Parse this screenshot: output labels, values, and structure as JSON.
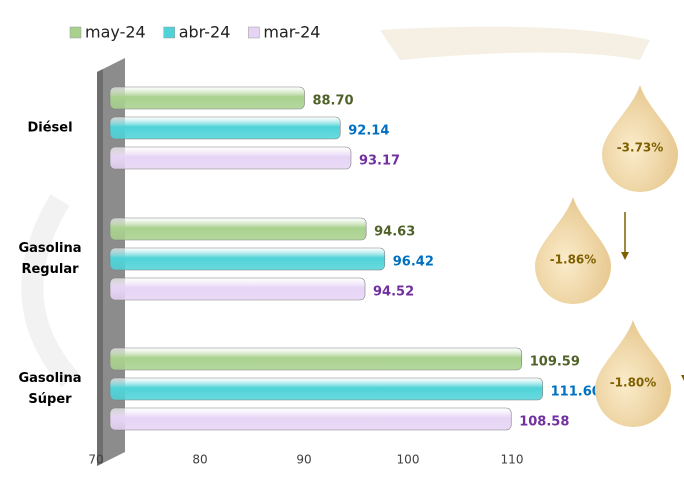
{
  "chart_data": {
    "type": "bar",
    "orientation": "horizontal",
    "categories": [
      "Diésel",
      "Gasolina Regular",
      "Gasolina Súper"
    ],
    "series": [
      {
        "name": "may-24",
        "color": "#a9d18e",
        "label_color": "#4f6228",
        "values": [
          88.7,
          94.63,
          109.59
        ],
        "value_labels": [
          "88.70",
          "94.63",
          "109.59"
        ]
      },
      {
        "name": "abr-24",
        "color": "#4fd3d8",
        "label_color": "#0070c0",
        "values": [
          92.14,
          96.42,
          111.6
        ],
        "value_labels": [
          "92.14",
          "96.42",
          "111.60"
        ]
      },
      {
        "name": "mar-24",
        "color": "#e6d4f5",
        "label_color": "#7030a0",
        "values": [
          93.17,
          94.52,
          108.58
        ],
        "value_labels": [
          "93.17",
          "94.52",
          "108.58"
        ]
      }
    ],
    "annotations": [
      "-3.73%",
      "-1.86%",
      "-1.80%"
    ],
    "xlim": [
      70,
      120
    ],
    "xticks": [
      70,
      80,
      90,
      100,
      110
    ]
  }
}
